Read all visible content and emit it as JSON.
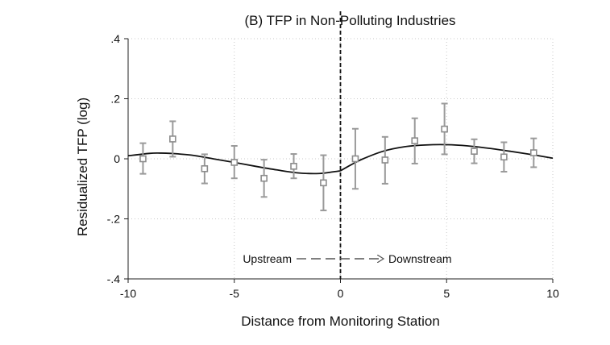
{
  "chart_data": {
    "type": "scatter",
    "title": "(B) TFP in Non-Polluting Industries",
    "xlabel": "Distance from Monitoring Station",
    "ylabel": "Residualized TFP (log)",
    "xlim": [
      -10,
      10
    ],
    "ylim": [
      -0.4,
      0.4
    ],
    "x_ticks": [
      -10,
      -5,
      0,
      5,
      10
    ],
    "x_tick_labels": [
      "-10",
      "-5",
      "0",
      "5",
      "10"
    ],
    "y_ticks": [
      -0.4,
      -0.2,
      0,
      0.2,
      0.4
    ],
    "y_tick_labels": [
      "-.4",
      "-.2",
      "0",
      ".2",
      ".4"
    ],
    "grid": true,
    "cutoff_x": 0,
    "annotation": {
      "left": "Upstream",
      "right": "Downstream"
    },
    "points": [
      {
        "x": -9.3,
        "y": 0.0,
        "lo": -0.05,
        "hi": 0.052
      },
      {
        "x": -7.9,
        "y": 0.066,
        "lo": 0.007,
        "hi": 0.125
      },
      {
        "x": -6.4,
        "y": -0.033,
        "lo": -0.082,
        "hi": 0.015
      },
      {
        "x": -5.0,
        "y": -0.012,
        "lo": -0.065,
        "hi": 0.043
      },
      {
        "x": -3.6,
        "y": -0.065,
        "lo": -0.127,
        "hi": -0.003
      },
      {
        "x": -2.2,
        "y": -0.025,
        "lo": -0.065,
        "hi": 0.016
      },
      {
        "x": -0.8,
        "y": -0.08,
        "lo": -0.172,
        "hi": 0.012
      },
      {
        "x": 0.7,
        "y": 0.0,
        "lo": -0.1,
        "hi": 0.1
      },
      {
        "x": 2.1,
        "y": -0.004,
        "lo": -0.083,
        "hi": 0.073
      },
      {
        "x": 3.5,
        "y": 0.06,
        "lo": -0.016,
        "hi": 0.135
      },
      {
        "x": 4.9,
        "y": 0.099,
        "lo": 0.015,
        "hi": 0.184
      },
      {
        "x": 6.3,
        "y": 0.025,
        "lo": -0.015,
        "hi": 0.065
      },
      {
        "x": 7.7,
        "y": 0.006,
        "lo": -0.043,
        "hi": 0.055
      },
      {
        "x": 9.1,
        "y": 0.02,
        "lo": -0.028,
        "hi": 0.068
      }
    ],
    "fit_left": {
      "x": [
        -10,
        -9,
        -8.5,
        -8,
        -7,
        -6,
        -5,
        -4,
        -3,
        -2,
        -1,
        -0.3,
        0
      ],
      "y": [
        0.01,
        0.018,
        0.019,
        0.018,
        0.012,
        0.0,
        -0.012,
        -0.025,
        -0.037,
        -0.047,
        -0.049,
        -0.043,
        -0.04
      ]
    },
    "fit_right": {
      "x": [
        0,
        0.5,
        1,
        2,
        3,
        4,
        5,
        6,
        7,
        8,
        9,
        10
      ],
      "y": [
        -0.04,
        -0.02,
        -0.002,
        0.025,
        0.04,
        0.046,
        0.047,
        0.043,
        0.035,
        0.025,
        0.014,
        0.002
      ]
    }
  }
}
